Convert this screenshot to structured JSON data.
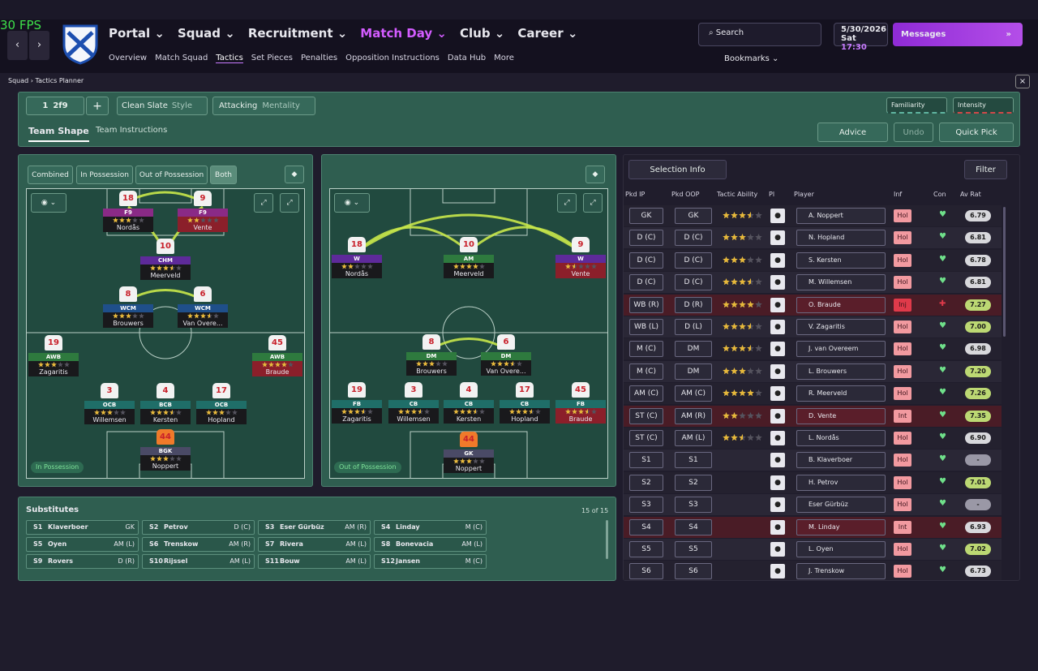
{
  "fps": "30 FPS",
  "nav": [
    "Portal",
    "Squad",
    "Recruitment",
    "Match Day",
    "Club",
    "Career"
  ],
  "sub_nav": [
    "Overview",
    "Match Squad",
    "Tactics",
    "Set Pieces",
    "Penalties",
    "Opposition Instructions",
    "Data Hub",
    "More"
  ],
  "search": "Search",
  "date": "5/30/2026",
  "day": "Sat",
  "time": "17:30",
  "messages": "Messages",
  "bookmarks": "Bookmarks",
  "breadcrumb": [
    "Squad",
    "Tactics Planner"
  ],
  "toolbar": {
    "slot": "1",
    "tactic": "2f9",
    "style_value": "Clean Slate",
    "style_label": "Style",
    "mentality_value": "Attacking",
    "mentality_label": "Mentality",
    "familiarity": "Familiarity",
    "intensity": "Intensity",
    "tabs": [
      "Team Shape",
      "Team Instructions"
    ],
    "advice": "Advice",
    "undo": "Undo",
    "quick_pick": "Quick Pick"
  },
  "filters": [
    "Combined",
    "In Possession",
    "Out of Possession",
    "Both"
  ],
  "pitches": [
    {
      "label": "In Possession",
      "players": [
        {
          "number": "18",
          "role": "F9",
          "stars": 3,
          "name": "Nordås",
          "role_color": "#8a2a86",
          "plate_color": "#19191c"
        },
        {
          "number": "9",
          "role": "F9",
          "stars": 2,
          "name": "Vente",
          "role_color": "#8a2a86",
          "plate_color": "#8b1f2a"
        },
        {
          "number": "10",
          "role": "CHM",
          "stars": 3.5,
          "name": "Meerveld",
          "role_color": "#5e2a9a",
          "plate_color": "#19191c"
        },
        {
          "number": "8",
          "role": "WCM",
          "stars": 3,
          "name": "Brouwers",
          "role_color": "#1f4f8a",
          "plate_color": "#19191c"
        },
        {
          "number": "6",
          "role": "WCM",
          "stars": 3.5,
          "name": "Van Overe...",
          "role_color": "#1f4f8a",
          "plate_color": "#19191c"
        },
        {
          "number": "19",
          "role": "AWB",
          "stars": 3,
          "name": "Zagaritis",
          "role_color": "#2e7a3e",
          "plate_color": "#19191c"
        },
        {
          "number": "45",
          "role": "AWB",
          "stars": 4,
          "name": "Braude",
          "role_color": "#2e7a3e",
          "plate_color": "#8b1f2a"
        },
        {
          "number": "3",
          "role": "OCB",
          "stars": 3,
          "name": "Willemsen",
          "role_color": "#1f6e68",
          "plate_color": "#19191c"
        },
        {
          "number": "4",
          "role": "BCB",
          "stars": 3.5,
          "name": "Kersten",
          "role_color": "#1f6e68",
          "plate_color": "#19191c"
        },
        {
          "number": "17",
          "role": "OCB",
          "stars": 3,
          "name": "Hopland",
          "role_color": "#1f6e68",
          "plate_color": "#19191c"
        },
        {
          "number": "44",
          "role": "BGK",
          "stars": 3,
          "name": "Noppert",
          "role_color": "#4a4a66",
          "plate_color": "#19191c"
        }
      ]
    },
    {
      "label": "Out of Possession",
      "players": [
        {
          "number": "18",
          "role": "W",
          "stars": 2,
          "name": "Nordås",
          "role_color": "#5e2a9a",
          "plate_color": "#19191c"
        },
        {
          "number": "10",
          "role": "AM",
          "stars": 4,
          "name": "Meerveld",
          "role_color": "#2e7a3e",
          "plate_color": "#19191c"
        },
        {
          "number": "9",
          "role": "W",
          "stars": 1.5,
          "name": "Vente",
          "role_color": "#5e2a9a",
          "plate_color": "#8b1f2a"
        },
        {
          "number": "8",
          "role": "DM",
          "stars": 3,
          "name": "Brouwers",
          "role_color": "#2e7a3e",
          "plate_color": "#19191c"
        },
        {
          "number": "6",
          "role": "DM",
          "stars": 3.5,
          "name": "Van Overe...",
          "role_color": "#2e7a3e",
          "plate_color": "#19191c"
        },
        {
          "number": "19",
          "role": "FB",
          "stars": 3.5,
          "name": "Zagaritis",
          "role_color": "#1f6e68",
          "plate_color": "#19191c"
        },
        {
          "number": "3",
          "role": "CB",
          "stars": 3.5,
          "name": "Willemsen",
          "role_color": "#1f6e68",
          "plate_color": "#19191c"
        },
        {
          "number": "4",
          "role": "CB",
          "stars": 3.5,
          "name": "Kersten",
          "role_color": "#1f6e68",
          "plate_color": "#19191c"
        },
        {
          "number": "17",
          "role": "CB",
          "stars": 3.5,
          "name": "Hopland",
          "role_color": "#1f6e68",
          "plate_color": "#19191c"
        },
        {
          "number": "45",
          "role": "FB",
          "stars": 3.5,
          "name": "Braude",
          "role_color": "#1f6e68",
          "plate_color": "#8b1f2a"
        },
        {
          "number": "44",
          "role": "GK",
          "stars": 3,
          "name": "Noppert",
          "role_color": "#4a4a66",
          "plate_color": "#19191c"
        }
      ]
    }
  ],
  "substitutes": {
    "title": "Substitutes",
    "count": "15 of 15",
    "rows": [
      [
        "S1",
        "Klaverboer",
        "GK"
      ],
      [
        "S2",
        "Petrov",
        "D (C)"
      ],
      [
        "S3",
        "Eser Gürbüz",
        "AM (R)"
      ],
      [
        "S4",
        "Linday",
        "M (C)"
      ],
      [
        "S5",
        "Oyen",
        "AM (L)"
      ],
      [
        "S6",
        "Trenskow",
        "AM (R)"
      ],
      [
        "S7",
        "Rivera",
        "AM (L)"
      ],
      [
        "S8",
        "Bonevacia",
        "AM (L)"
      ],
      [
        "S9",
        "Rovers",
        "D (R)"
      ],
      [
        "S10",
        "Rijssel",
        "AM (L)"
      ],
      [
        "S11",
        "Bouw",
        "AM (L)"
      ],
      [
        "S12",
        "Jansen",
        "M (C)"
      ]
    ]
  },
  "selection": {
    "button": "Selection Info",
    "filter": "Filter",
    "headers": [
      "Pkd IP",
      "Pkd OOP",
      "Tactic Ability",
      "Pl",
      "Player",
      "Inf",
      "Con",
      "Av Rat"
    ],
    "rows": [
      {
        "ip": "GK",
        "oop": "GK",
        "stars": 3.5,
        "player": "A. Noppert",
        "inf": "Hol",
        "rating": "6.79"
      },
      {
        "ip": "D (C)",
        "oop": "D (C)",
        "stars": 3,
        "player": "N. Hopland",
        "inf": "Hol",
        "rating": "6.81"
      },
      {
        "ip": "D (C)",
        "oop": "D (C)",
        "stars": 3,
        "player": "S. Kersten",
        "inf": "Hol",
        "rating": "6.78"
      },
      {
        "ip": "D (C)",
        "oop": "D (C)",
        "stars": 3.5,
        "player": "M. Willemsen",
        "inf": "Hol",
        "rating": "6.81"
      },
      {
        "ip": "WB (R)",
        "oop": "D (R)",
        "stars": 4,
        "player": "O. Braude",
        "inf": "Inj",
        "rating": "7.27"
      },
      {
        "ip": "WB (L)",
        "oop": "D (L)",
        "stars": 3.5,
        "player": "V. Zagaritis",
        "inf": "Hol",
        "rating": "7.00"
      },
      {
        "ip": "M (C)",
        "oop": "DM",
        "stars": 3.5,
        "player": "J. van Overeem",
        "inf": "Hol",
        "rating": "6.98"
      },
      {
        "ip": "M (C)",
        "oop": "DM",
        "stars": 3,
        "player": "L. Brouwers",
        "inf": "Hol",
        "rating": "7.20"
      },
      {
        "ip": "AM (C)",
        "oop": "AM (C)",
        "stars": 4,
        "player": "R. Meerveld",
        "inf": "Hol",
        "rating": "7.26"
      },
      {
        "ip": "ST (C)",
        "oop": "AM (R)",
        "stars": 2,
        "player": "D. Vente",
        "inf": "Int",
        "rating": "7.35"
      },
      {
        "ip": "ST (C)",
        "oop": "AM (L)",
        "stars": 2.5,
        "player": "L. Nordås",
        "inf": "Hol",
        "rating": "6.90"
      },
      {
        "ip": "S1",
        "oop": "S1",
        "stars": null,
        "player": "B. Klaverboer",
        "inf": "Hol",
        "rating": "-"
      },
      {
        "ip": "S2",
        "oop": "S2",
        "stars": null,
        "player": "H. Petrov",
        "inf": "Hol",
        "rating": "7.01"
      },
      {
        "ip": "S3",
        "oop": "S3",
        "stars": null,
        "player": "Eser Gürbüz",
        "inf": "Hol",
        "rating": "-"
      },
      {
        "ip": "S4",
        "oop": "S4",
        "stars": null,
        "player": "M. Linday",
        "inf": "Int",
        "rating": "6.93"
      },
      {
        "ip": "S5",
        "oop": "S5",
        "stars": null,
        "player": "L. Oyen",
        "inf": "Hol",
        "rating": "7.02"
      },
      {
        "ip": "S6",
        "oop": "S6",
        "stars": null,
        "player": "J. Trenskow",
        "inf": "Hol",
        "rating": "6.73"
      }
    ]
  }
}
